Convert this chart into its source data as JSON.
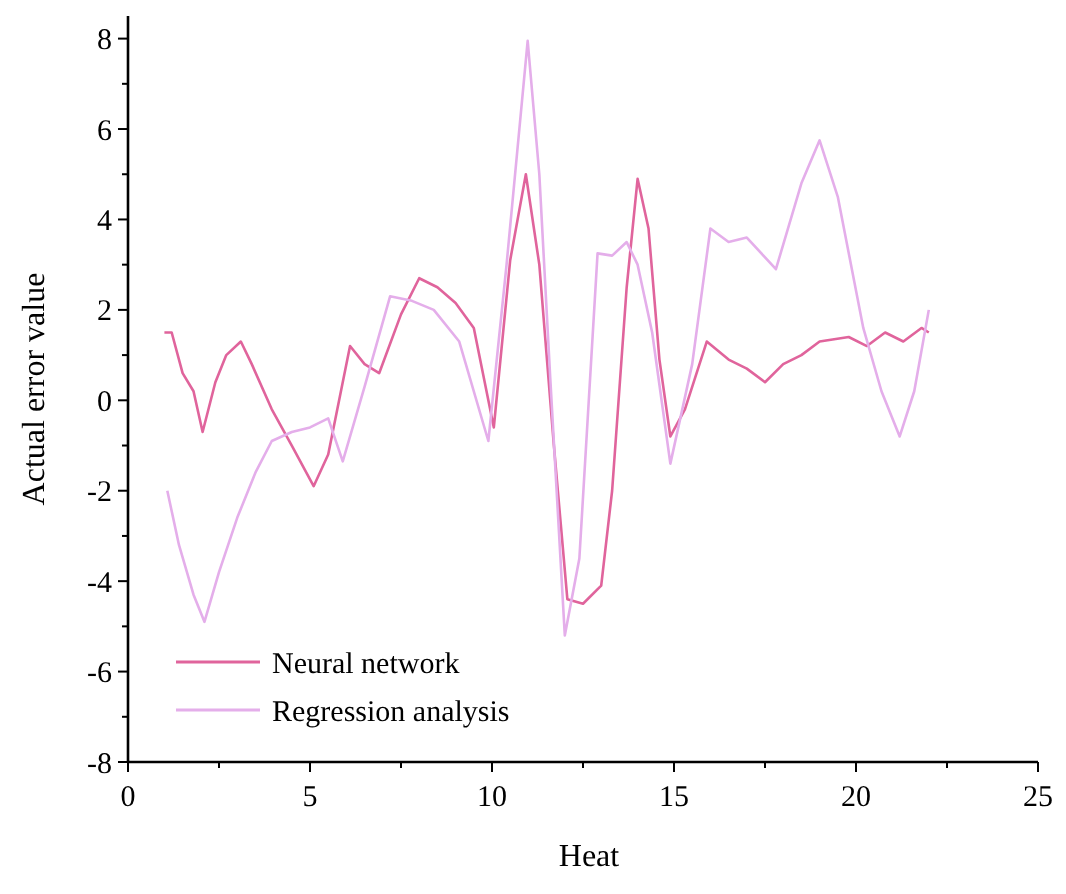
{
  "chart_data": {
    "type": "line",
    "xlabel": "Heat",
    "ylabel": "Actual error value",
    "xlim": [
      0,
      25
    ],
    "ylim": [
      -8,
      8.5
    ],
    "xticks": [
      0,
      5,
      10,
      15,
      20,
      25
    ],
    "yticks": [
      -8,
      -6,
      -4,
      -2,
      0,
      2,
      4,
      6,
      8
    ],
    "grid": false,
    "legend": "bottom left",
    "line_style": "solid",
    "marker": "none",
    "series": [
      {
        "name": "Neural network",
        "color": "#e0649c",
        "x": [
          1.0,
          1.2,
          1.5,
          1.8,
          2.05,
          2.4,
          2.7,
          3.1,
          3.4,
          3.95,
          4.5,
          5.1,
          5.5,
          6.1,
          6.5,
          6.9,
          7.5,
          8.0,
          8.5,
          9.0,
          9.5,
          10.05,
          10.5,
          10.93,
          11.3,
          11.7,
          12.07,
          12.5,
          13.0,
          13.3,
          13.7,
          14.0,
          14.3,
          14.6,
          14.9,
          15.3,
          15.9,
          16.5,
          17.0,
          17.5,
          18.0,
          18.5,
          19.0,
          19.8,
          20.3,
          20.8,
          21.3,
          21.8,
          22.0
        ],
        "values": [
          1.5,
          1.5,
          0.6,
          0.2,
          -0.7,
          0.4,
          1.0,
          1.3,
          0.8,
          -0.2,
          -1.0,
          -1.9,
          -1.2,
          1.2,
          0.8,
          0.6,
          1.9,
          2.7,
          2.5,
          2.15,
          1.6,
          -0.6,
          3.1,
          5.0,
          3.0,
          -1.0,
          -4.4,
          -4.5,
          -4.1,
          -2.0,
          2.5,
          4.9,
          3.8,
          0.9,
          -0.8,
          -0.2,
          1.3,
          0.9,
          0.7,
          0.4,
          0.8,
          1.0,
          1.3,
          1.4,
          1.2,
          1.5,
          1.3,
          1.6,
          1.5
        ]
      },
      {
        "name": "Regression analysis",
        "color": "#e4aeea",
        "x": [
          1.08,
          1.4,
          1.8,
          2.1,
          2.5,
          3.0,
          3.5,
          3.95,
          4.5,
          5.0,
          5.5,
          5.9,
          6.5,
          7.2,
          7.8,
          8.4,
          9.1,
          9.9,
          10.4,
          10.98,
          11.3,
          11.6,
          12.0,
          12.4,
          12.9,
          13.3,
          13.7,
          14.0,
          14.4,
          14.9,
          15.5,
          16.0,
          16.5,
          17.0,
          17.8,
          18.5,
          19.0,
          19.5,
          20.2,
          20.7,
          21.2,
          21.6,
          22.0
        ],
        "values": [
          -2.0,
          -3.2,
          -4.3,
          -4.9,
          -3.8,
          -2.6,
          -1.6,
          -0.9,
          -0.7,
          -0.6,
          -0.4,
          -1.35,
          0.3,
          2.3,
          2.2,
          2.0,
          1.3,
          -0.9,
          3.0,
          7.95,
          5.0,
          0.5,
          -5.2,
          -3.5,
          3.25,
          3.2,
          3.5,
          3.0,
          1.5,
          -1.4,
          0.8,
          3.8,
          3.5,
          3.6,
          2.9,
          4.8,
          5.75,
          4.5,
          1.6,
          0.2,
          -0.8,
          0.2,
          2.0
        ]
      }
    ]
  }
}
